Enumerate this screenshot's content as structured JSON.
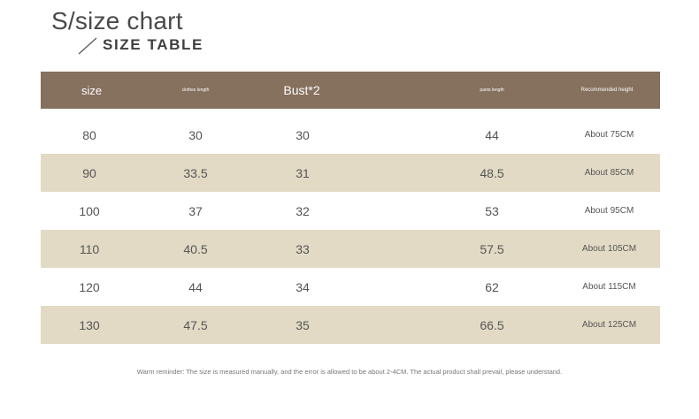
{
  "title": "S/size chart",
  "subtitle": "SIZE TABLE",
  "header": {
    "size": "size",
    "clothes_length": "clothes length",
    "bust": "Bust*2",
    "pants_length": "pants length",
    "recommended_height": "Recommended height"
  },
  "rows": [
    {
      "size": "80",
      "clothes_length": "30",
      "bust": "30",
      "pants_length": "44",
      "height": "About 75CM"
    },
    {
      "size": "90",
      "clothes_length": "33.5",
      "bust": "31",
      "pants_length": "48.5",
      "height": "About 85CM"
    },
    {
      "size": "100",
      "clothes_length": "37",
      "bust": "32",
      "pants_length": "53",
      "height": "About 95CM"
    },
    {
      "size": "110",
      "clothes_length": "40.5",
      "bust": "33",
      "pants_length": "57.5",
      "height": "About 105CM"
    },
    {
      "size": "120",
      "clothes_length": "44",
      "bust": "34",
      "pants_length": "62",
      "height": "About 115CM"
    },
    {
      "size": "130",
      "clothes_length": "47.5",
      "bust": "35",
      "pants_length": "66.5",
      "height": "About 125CM"
    }
  ],
  "note": "Warm reminder: The size is measured manually, and the error is allowed to be about 2-4CM. The actual product shall prevail, please understand.",
  "colors": {
    "header_bg": "#86705e",
    "row_shade": "#e3dac5"
  }
}
